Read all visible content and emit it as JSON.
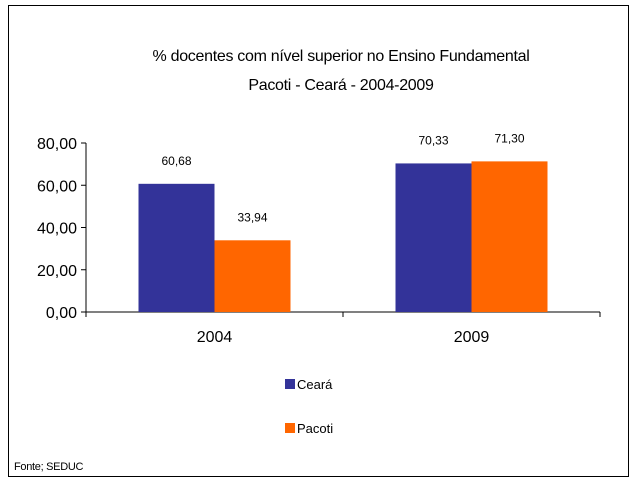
{
  "chart_data": {
    "type": "bar",
    "title": "% docentes com nível  superior no Ensino Fundamental",
    "subtitle": "Pacoti  -  Ceará - 2004-2009",
    "categories": [
      "2004",
      "2009"
    ],
    "series": [
      {
        "name": "Ceará",
        "values": [
          60.68,
          70.33
        ],
        "labels": [
          "60,68",
          "70,33"
        ],
        "color": "#333399"
      },
      {
        "name": "Pacoti",
        "values": [
          33.94,
          71.3
        ],
        "labels": [
          "33,94",
          "71,30"
        ],
        "color": "#FF6600"
      }
    ],
    "ylim": [
      0,
      80
    ],
    "yticks": [
      "0,00",
      "20,00",
      "40,00",
      "60,00",
      "80,00"
    ],
    "ytick_values": [
      0,
      20,
      40,
      60,
      80
    ],
    "grid": false,
    "legend_position": "bottom",
    "source": "Fonte; SEDUC"
  }
}
